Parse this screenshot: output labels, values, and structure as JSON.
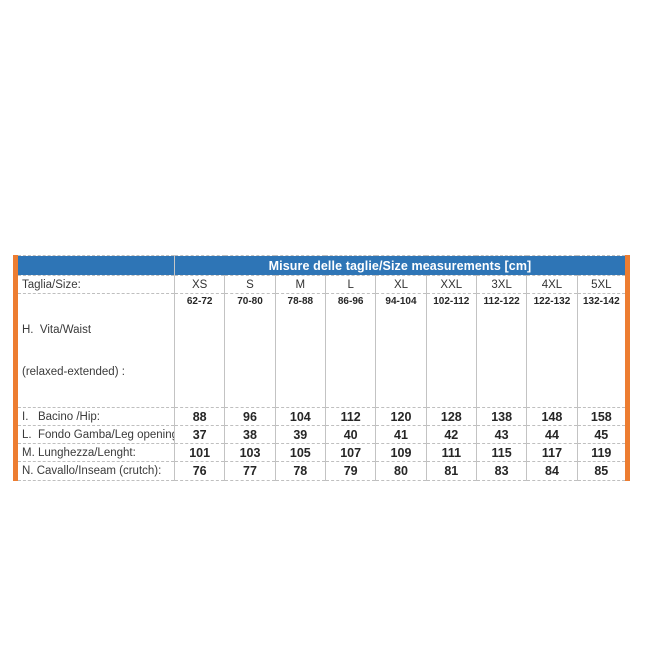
{
  "table": {
    "title": "Misure delle taglie/Size measurements [cm]",
    "size_label": "Taglia/Size:",
    "sizes": [
      "XS",
      "S",
      "M",
      "L",
      "XL",
      "XXL",
      "3XL",
      "4XL",
      "5XL"
    ],
    "rows": [
      {
        "label": "H.  Vita/Waist",
        "label2": "(relaxed-extended) :",
        "values": [
          "62-72",
          "70-80",
          "78-88",
          "86-96",
          "94-104",
          "102-112",
          "112-122",
          "122-132",
          "132-142"
        ]
      },
      {
        "label": "I.   Bacino /Hip:",
        "values": [
          "88",
          "96",
          "104",
          "112",
          "120",
          "128",
          "138",
          "148",
          "158"
        ]
      },
      {
        "label": "L.  Fondo Gamba/Leg opening:",
        "values": [
          "37",
          "38",
          "39",
          "40",
          "41",
          "42",
          "43",
          "44",
          "45"
        ]
      },
      {
        "label": "M. Lunghezza/Lenght:",
        "values": [
          "101",
          "103",
          "105",
          "107",
          "109",
          "111",
          "115",
          "117",
          "119"
        ]
      },
      {
        "label": "N. Cavallo/Inseam (crutch):",
        "values": [
          "76",
          "77",
          "78",
          "79",
          "80",
          "81",
          "83",
          "84",
          "85"
        ]
      }
    ],
    "colors": {
      "header_bg": "#2E75B6",
      "header_text": "#FFFFFF",
      "side_border": "#ED7D31",
      "grid_line": "#BFBFBF",
      "label_text": "#3A3A3A",
      "value_text": "#262626"
    }
  }
}
